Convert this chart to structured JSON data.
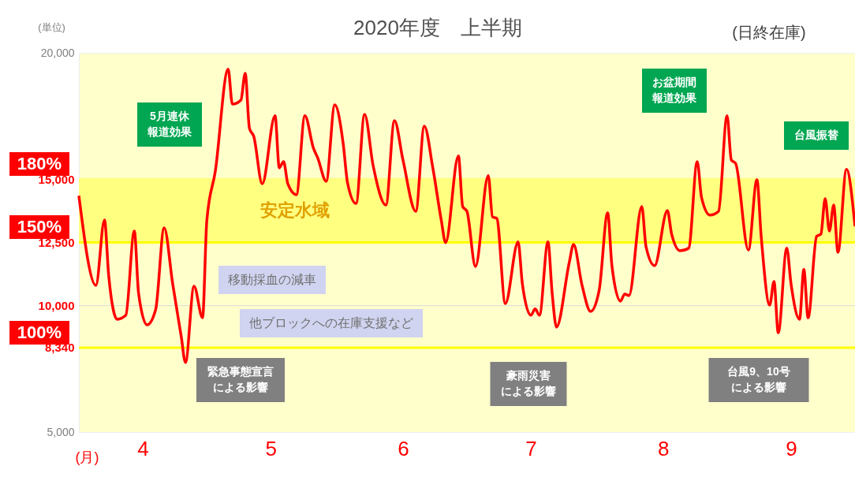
{
  "chart_data": {
    "type": "line",
    "title": "2020年度　上半期",
    "subtitle": "(日終在庫)",
    "ylabel": "(単位)",
    "xlabel": "(月)",
    "x": [
      "2020-04-01",
      "2020-04-05",
      "2020-04-07",
      "2020-04-08",
      "2020-04-10",
      "2020-04-12",
      "2020-04-14",
      "2020-04-15",
      "2020-04-17",
      "2020-04-19",
      "2020-04-21",
      "2020-04-23",
      "2020-04-25",
      "2020-04-26",
      "2020-04-28",
      "2020-04-30",
      "2020-05-01",
      "2020-05-03",
      "2020-05-06",
      "2020-05-07",
      "2020-05-09",
      "2020-05-10",
      "2020-05-11",
      "2020-05-12",
      "2020-05-14",
      "2020-05-17",
      "2020-05-18",
      "2020-05-19",
      "2020-05-20",
      "2020-05-22",
      "2020-05-24",
      "2020-05-26",
      "2020-05-27",
      "2020-05-29",
      "2020-05-31",
      "2020-06-02",
      "2020-06-03",
      "2020-06-05",
      "2020-06-07",
      "2020-06-09",
      "2020-06-12",
      "2020-06-14",
      "2020-06-16",
      "2020-06-19",
      "2020-06-21",
      "2020-06-23",
      "2020-06-25",
      "2020-06-26",
      "2020-06-29",
      "2020-06-30",
      "2020-07-01",
      "2020-07-03",
      "2020-07-06",
      "2020-07-07",
      "2020-07-08",
      "2020-07-10",
      "2020-07-13",
      "2020-07-14",
      "2020-07-16",
      "2020-07-17",
      "2020-07-18",
      "2020-07-20",
      "2020-07-21",
      "2020-07-22",
      "2020-07-25",
      "2020-07-26",
      "2020-07-28",
      "2020-07-30",
      "2020-08-01",
      "2020-08-03",
      "2020-08-04",
      "2020-08-06",
      "2020-08-07",
      "2020-08-08",
      "2020-08-11",
      "2020-08-12",
      "2020-08-14",
      "2020-08-17",
      "2020-08-18",
      "2020-08-20",
      "2020-08-22",
      "2020-08-24",
      "2020-08-25",
      "2020-08-27",
      "2020-08-29",
      "2020-08-31",
      "2020-09-01",
      "2020-09-02",
      "2020-09-05",
      "2020-09-07",
      "2020-09-08",
      "2020-09-10",
      "2020-09-11",
      "2020-09-12",
      "2020-09-14",
      "2020-09-15",
      "2020-09-17",
      "2020-09-18",
      "2020-09-19",
      "2020-09-21",
      "2020-09-22",
      "2020-09-23",
      "2020-09-24",
      "2020-09-25",
      "2020-09-26",
      "2020-09-28",
      "2020-09-30"
    ],
    "series": [
      {
        "color": "#ff0000",
        "values": [
          14350,
          10800,
          13390,
          11180,
          9460,
          9620,
          12950,
          10490,
          9240,
          9840,
          13080,
          10860,
          8780,
          7750,
          10770,
          9520,
          13360,
          15320,
          19350,
          17970,
          18130,
          19190,
          17010,
          16700,
          14820,
          17510,
          15450,
          15700,
          14820,
          14390,
          17510,
          16230,
          15850,
          14920,
          17940,
          16380,
          14860,
          14040,
          17570,
          15540,
          13980,
          17320,
          15760,
          13730,
          17100,
          15450,
          13360,
          12490,
          15920,
          13920,
          13730,
          11550,
          15140,
          13510,
          13450,
          10080,
          12520,
          10860,
          9620,
          9870,
          9620,
          12520,
          10460,
          9150,
          11710,
          12420,
          10800,
          9770,
          10600,
          13670,
          11580,
          10180,
          10460,
          10400,
          13920,
          12330,
          11580,
          13760,
          12830,
          12170,
          12270,
          15700,
          14290,
          13580,
          13730,
          17510,
          15760,
          15630,
          12200,
          14980,
          12740,
          10020,
          10960,
          8930,
          12270,
          10860,
          9460,
          11430,
          9520,
          12740,
          12830,
          14230,
          12950,
          13980,
          12110,
          15390,
          13140
        ]
      }
    ],
    "xlim": [
      "2020-04-01",
      "2020-09-30"
    ],
    "xticks": [
      {
        "value": "2020-04-16",
        "label": "4"
      },
      {
        "value": "2020-05-16",
        "label": "5"
      },
      {
        "value": "2020-06-16",
        "label": "6"
      },
      {
        "value": "2020-07-16",
        "label": "7"
      },
      {
        "value": "2020-08-16",
        "label": "8"
      },
      {
        "value": "2020-09-15",
        "label": "9"
      }
    ],
    "ylim": [
      5000,
      20000
    ],
    "yticks": [
      {
        "value": 5000,
        "label": "5,000"
      },
      {
        "value": 8340,
        "label": "8,340"
      },
      {
        "value": 10000,
        "label": "10,000"
      },
      {
        "value": 12500,
        "label": "12,500"
      },
      {
        "value": 15000,
        "label": "15,000"
      },
      {
        "value": 20000,
        "label": "20,000"
      }
    ],
    "marker": "none",
    "line_style": "solid",
    "bands": [
      {
        "axis": "y",
        "from": 12500,
        "to": 15000,
        "label": "安定水域",
        "color": "#ffff80"
      }
    ],
    "ref_lines": [
      {
        "axis": "y",
        "value": 15000,
        "color": "#ffff80"
      },
      {
        "axis": "y",
        "value": 12500,
        "color": "#ffff00"
      },
      {
        "axis": "y",
        "value": 8340,
        "color": "#ffff00"
      },
      {
        "axis": "y",
        "value": 10000,
        "color": "#d9d9d9",
        "line_style": "solid"
      }
    ],
    "annotations": [
      "5月連休報道効果",
      "お盆期間報道効果",
      "台風振替",
      "緊急事態宣言による影響",
      "豪雨災害による影響",
      "台風9、10号による影響",
      "180%",
      "150%",
      "100%",
      "移動採血の減車",
      "他ブロックへの在庫支援など"
    ]
  }
}
